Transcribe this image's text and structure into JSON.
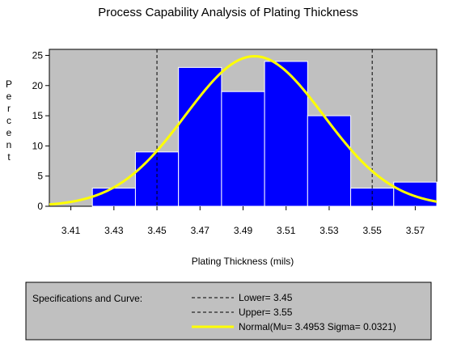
{
  "chart_data": {
    "type": "bar",
    "title": "Process Capability Analysis of Plating Thickness",
    "xlabel": "Plating Thickness (mils)",
    "ylabel": "Percent",
    "xlim": [
      3.4,
      3.58
    ],
    "ylim": [
      0,
      26
    ],
    "xticks": [
      "3.41",
      "3.43",
      "3.45",
      "3.47",
      "3.49",
      "3.51",
      "3.53",
      "3.55",
      "3.57"
    ],
    "yticks": [
      "0",
      "5",
      "10",
      "15",
      "20",
      "25"
    ],
    "bin_width": 0.02,
    "categories": [
      "3.43",
      "3.45",
      "3.47",
      "3.49",
      "3.51",
      "3.53",
      "3.55",
      "3.57"
    ],
    "values": [
      3,
      9,
      23,
      19,
      24,
      15,
      3,
      4
    ],
    "specs": {
      "lower": 3.45,
      "upper": 3.55
    },
    "normal_fit": {
      "mu": 3.4953,
      "sigma": 0.0321
    },
    "grid": false,
    "legend_placement": "bottom"
  },
  "colors": {
    "plot_background": "#c0c0c0",
    "bar_fill": "#0000ff",
    "bar_edge": "#ffffff",
    "curve": "#ffff00",
    "spec_lines": "#000000"
  },
  "legend": {
    "heading": "Specifications and Curve:",
    "items": [
      {
        "label": "Lower= 3.45",
        "style": "dashed"
      },
      {
        "label": "Upper= 3.55",
        "style": "dashed"
      },
      {
        "label": "Normal(Mu= 3.4953 Sigma= 0.0321)",
        "style": "curve"
      }
    ]
  }
}
